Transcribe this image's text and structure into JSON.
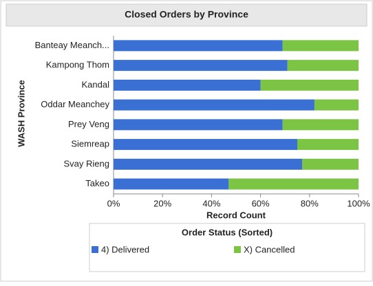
{
  "chart_data": {
    "type": "stacked_barh",
    "title": "Closed Orders by Province",
    "x_label": "Record Count",
    "y_label": "WASH Province",
    "legend_title": "Order Status (Sorted)",
    "categories": [
      "Banteay Meanch...",
      "Kampong Thom",
      "Kandal",
      "Oddar Meanchey",
      "Prey Veng",
      "Siemreap",
      "Svay Rieng",
      "Takeo"
    ],
    "series": [
      {
        "name": "4) Delivered",
        "color": "#3a6fd4",
        "values": [
          69,
          71,
          60,
          82,
          69,
          75,
          77,
          47
        ]
      },
      {
        "name": "X) Cancelled",
        "color": "#7cc443",
        "values": [
          31,
          29,
          40,
          18,
          31,
          25,
          23,
          53
        ]
      }
    ],
    "xlim": [
      0,
      100
    ],
    "xticks": [
      {
        "value": 0,
        "label": "0%"
      },
      {
        "value": 20,
        "label": "20%"
      },
      {
        "value": 40,
        "label": "40%"
      },
      {
        "value": 60,
        "label": "60%"
      },
      {
        "value": 80,
        "label": "80%"
      },
      {
        "value": 100,
        "label": "100%"
      }
    ],
    "legend": "bottom"
  }
}
